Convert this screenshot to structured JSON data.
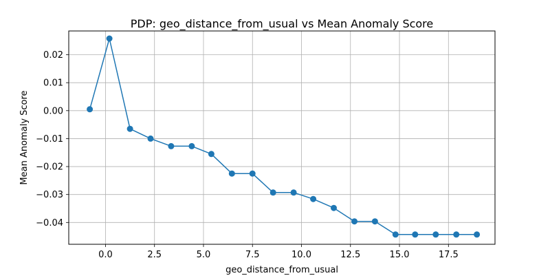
{
  "chart_data": {
    "type": "line",
    "title": "PDP: geo_distance_from_usual vs Mean Anomaly Score",
    "xlabel": "geo_distance_from_usual",
    "ylabel": "Mean Anomaly Score",
    "xlim": [
      -1.875,
      19.875
    ],
    "ylim": [
      -0.0478,
      0.0285
    ],
    "grid": true,
    "marker": "circle",
    "color": "#1f77b4",
    "x_ticks": [
      0.0,
      2.5,
      5.0,
      7.5,
      10.0,
      12.5,
      15.0,
      17.5
    ],
    "x_tick_labels": [
      "0.0",
      "2.5",
      "5.0",
      "7.5",
      "10.0",
      "12.5",
      "15.0",
      "17.5"
    ],
    "y_ticks": [
      0.02,
      0.01,
      0.0,
      -0.01,
      -0.02,
      -0.03,
      -0.04
    ],
    "y_tick_labels": [
      "0.02",
      "0.01",
      "0.00",
      "−0.01",
      "−0.02",
      "−0.03",
      "−0.04"
    ],
    "x": [
      -0.8,
      0.2,
      1.25,
      2.3,
      3.35,
      4.4,
      5.4,
      6.45,
      7.5,
      8.55,
      9.6,
      10.6,
      11.65,
      12.7,
      13.75,
      14.8,
      15.8,
      16.85,
      17.9,
      18.95
    ],
    "values": [
      0.0005,
      0.0258,
      -0.0065,
      -0.01,
      -0.0127,
      -0.0127,
      -0.0155,
      -0.0225,
      -0.0225,
      -0.0293,
      -0.0293,
      -0.0316,
      -0.0348,
      -0.0396,
      -0.0396,
      -0.0443,
      -0.0443,
      -0.0443,
      -0.0443,
      -0.0443
    ]
  }
}
